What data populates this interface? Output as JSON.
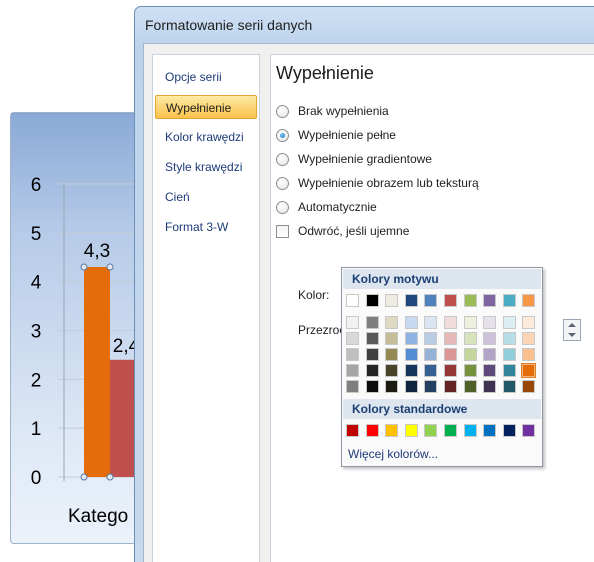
{
  "dialog": {
    "title": "Formatowanie serii danych",
    "nav": [
      "Opcje serii",
      "Wypełnienie",
      "Kolor krawędzi",
      "Style krawędzi",
      "Cień",
      "Format 3-W"
    ],
    "selected_nav": 1
  },
  "fill": {
    "section_title": "Wypełnienie",
    "options": [
      {
        "label": "Brak wypełnienia",
        "type": "radio",
        "checked": false
      },
      {
        "label": "Wypełnienie pełne",
        "type": "radio",
        "checked": true
      },
      {
        "label": "Wypełnienie gradientowe",
        "type": "radio",
        "checked": false
      },
      {
        "label": "Wypełnienie obrazem lub teksturą",
        "type": "radio",
        "checked": false
      },
      {
        "label": "Automatycznie",
        "type": "radio",
        "checked": false
      },
      {
        "label": "Odwróć, jeśli ujemne",
        "type": "checkbox",
        "checked": false
      }
    ],
    "color_label": "Kolor:",
    "color_value": "#e46c0a",
    "transparency_label": "Przezroc"
  },
  "palette": {
    "theme_header": "Kolory motywu",
    "standard_header": "Kolory standardowe",
    "more_label": "Więcej kolorów...",
    "theme_row": [
      "#ffffff",
      "#000000",
      "#eeece1",
      "#1f497d",
      "#4f81bd",
      "#c0504d",
      "#9bbb59",
      "#8064a2",
      "#4bacc6",
      "#f79646"
    ],
    "theme_shades": [
      [
        "#f2f2f2",
        "#d8d8d8",
        "#bfbfbf",
        "#a5a5a5",
        "#7f7f7f"
      ],
      [
        "#7f7f7f",
        "#595959",
        "#3f3f3f",
        "#262626",
        "#0c0c0c"
      ],
      [
        "#ddd9c3",
        "#c4bd97",
        "#938953",
        "#494429",
        "#1d1b10"
      ],
      [
        "#c6d9f0",
        "#8db3e2",
        "#548dd4",
        "#17365d",
        "#0f243e"
      ],
      [
        "#dbe5f1",
        "#b8cce4",
        "#95b3d7",
        "#366092",
        "#244061"
      ],
      [
        "#f2dcdb",
        "#e5b9b7",
        "#d99694",
        "#953734",
        "#632423"
      ],
      [
        "#ebf1dd",
        "#d7e3bc",
        "#c3d69b",
        "#76923c",
        "#4f6128"
      ],
      [
        "#e5e0ec",
        "#ccc1d9",
        "#b2a2c7",
        "#5f497a",
        "#3f3151"
      ],
      [
        "#dbeef3",
        "#b7dde8",
        "#92cddc",
        "#31859b",
        "#205867"
      ],
      [
        "#fdeada",
        "#fbd5b5",
        "#fac08f",
        "#e36c09",
        "#974806"
      ]
    ],
    "selected": {
      "col": 9,
      "shade": 3
    },
    "standard_row": [
      "#c00000",
      "#ff0000",
      "#ffc000",
      "#ffff00",
      "#92d050",
      "#00b050",
      "#00b0f0",
      "#0070c0",
      "#002060",
      "#7030a0"
    ]
  },
  "chart": {
    "chart_data": {
      "type": "bar",
      "categories": [
        "Katego"
      ],
      "series": [
        {
          "values": [
            4.3
          ],
          "color": "#e46c0a"
        },
        {
          "values": [
            2.4
          ],
          "color": "#c0504d"
        }
      ],
      "data_labels": [
        "4,3",
        "2,4"
      ],
      "ylim": [
        0,
        6
      ],
      "yticks": [
        "0",
        "1",
        "2",
        "3",
        "4",
        "5",
        "6"
      ],
      "grid": true
    }
  }
}
